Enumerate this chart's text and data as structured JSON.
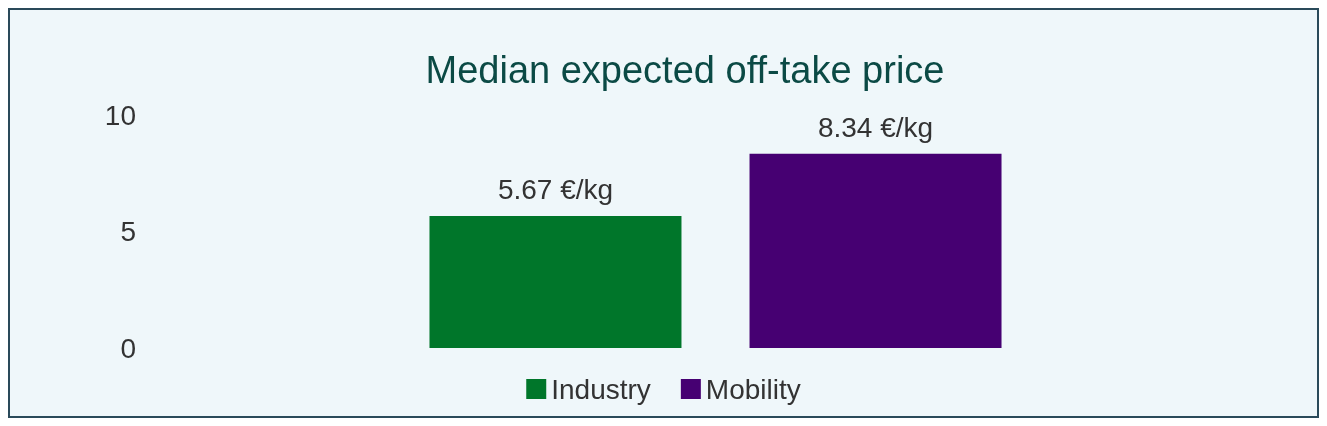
{
  "chart_data": {
    "type": "bar",
    "title": "Median expected off-take price",
    "categories": [
      null
    ],
    "series": [
      {
        "name": "Industry",
        "color": "#00762a",
        "values": [
          5.67
        ],
        "value_labels": [
          "5.67 €/kg"
        ]
      },
      {
        "name": "Mobility",
        "color": "#460072",
        "values": [
          8.34
        ],
        "value_labels": [
          "8.34 €/kg"
        ]
      }
    ],
    "ylim": [
      0,
      10
    ],
    "yticks": [
      0,
      5,
      10
    ],
    "grid": false,
    "legend": "bottom"
  }
}
